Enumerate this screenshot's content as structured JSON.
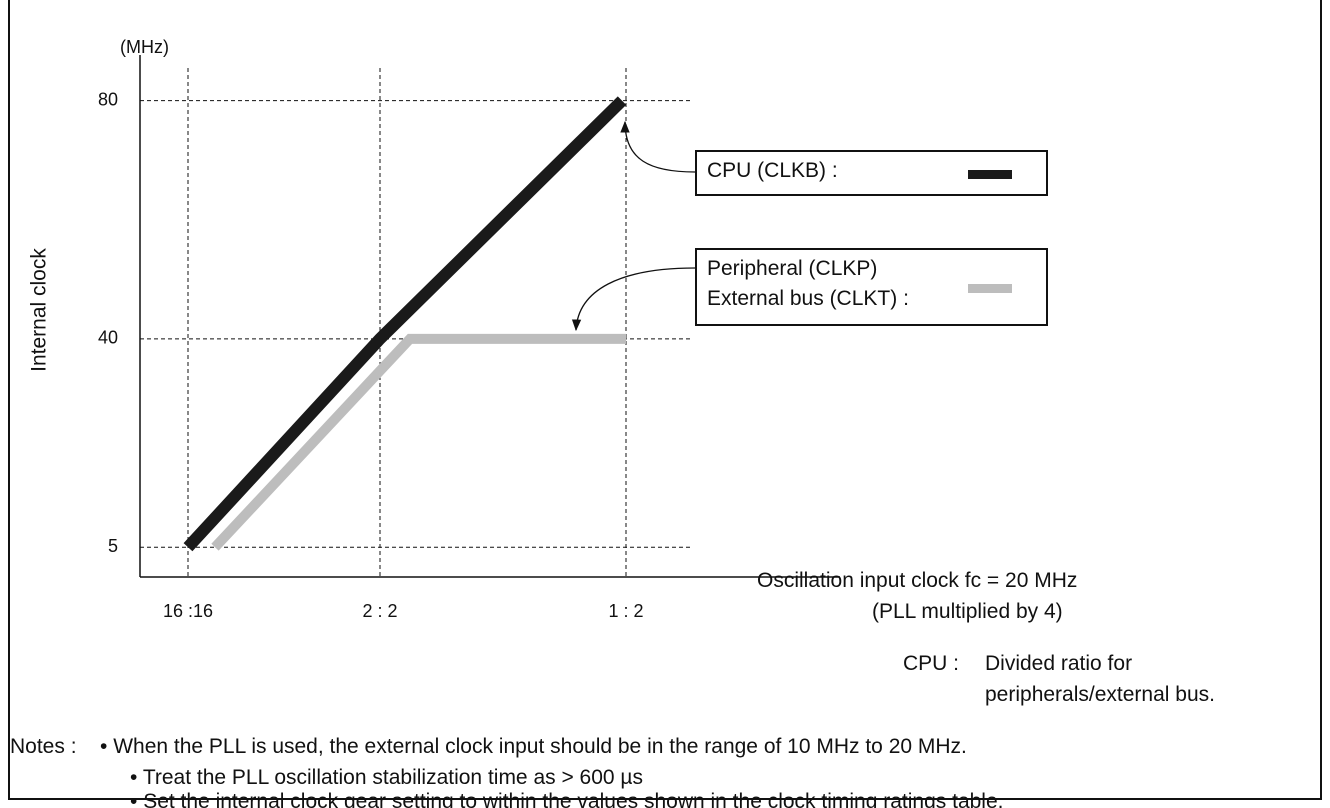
{
  "chart_data": {
    "type": "line",
    "y_unit": "(MHz)",
    "ylabel": "Internal clock",
    "categories": [
      "16 :16",
      "2 : 2",
      "1 : 2"
    ],
    "series": [
      {
        "name": "CPU (CLKB) :",
        "color": "#1a1a1a",
        "values": [
          5,
          40,
          80
        ]
      },
      {
        "name": "Peripheral (CLKP)\nExternal bus (CLKT) :",
        "color": "#bdbdbd",
        "values": [
          5,
          40,
          40
        ]
      }
    ],
    "ylim": [
      0,
      88
    ],
    "yticks": [
      5,
      40,
      80
    ],
    "grid": true,
    "annotations": [
      "Oscillation input clock fc = 20 MHz",
      "(PLL multiplied by 4)",
      "CPU :",
      "Divided ratio for\nperipherals/external bus."
    ]
  },
  "notes": {
    "label": "Notes :",
    "items": [
      "When the PLL is used, the external clock input should be in the range of 10 MHz to 20 MHz.",
      "Treat the PLL oscillation stabilization time as > 600 µs",
      "Set the internal clock gear setting to within the values shown in the clock timing ratings table."
    ]
  }
}
